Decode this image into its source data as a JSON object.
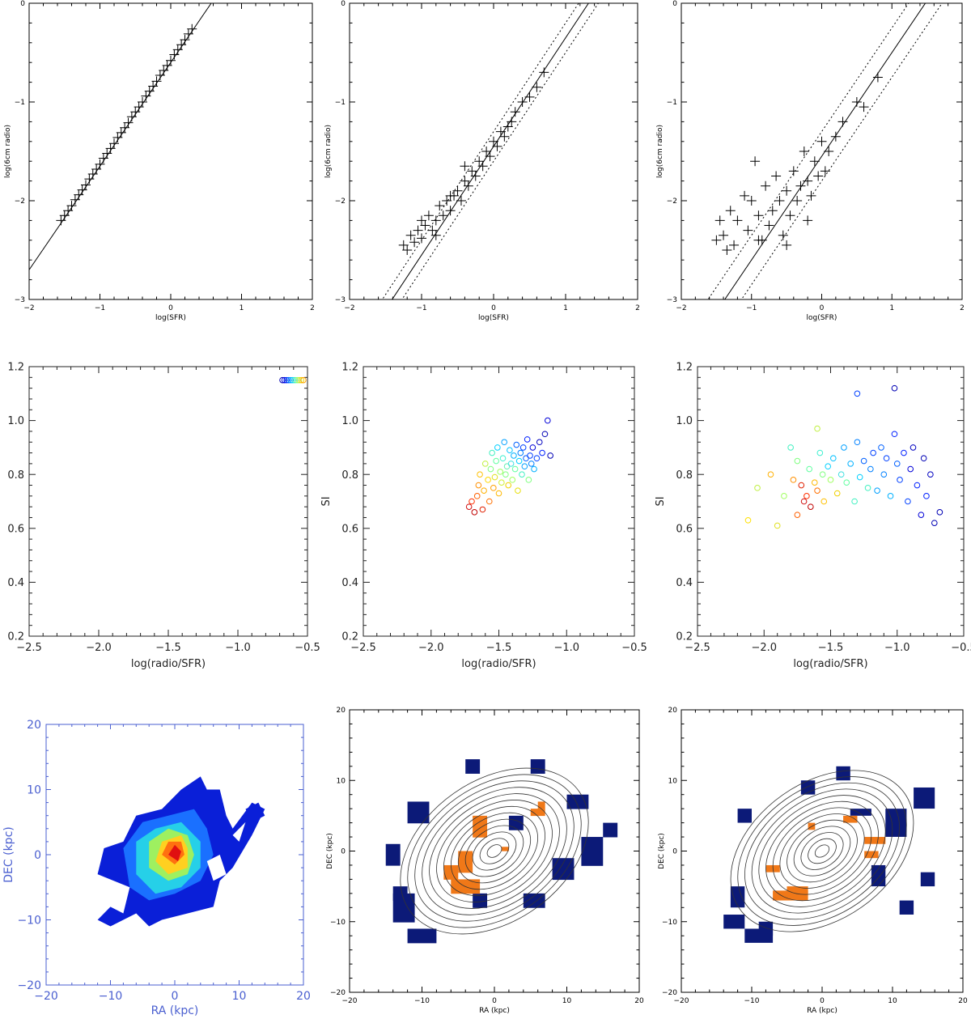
{
  "figure": {
    "row1": {
      "xlabel": "log(SFR)",
      "ylabel": "log(6cm radio)",
      "x_ticks": [
        "−2",
        "−1",
        "0",
        "1",
        "2"
      ],
      "y_ticks": [
        "−3",
        "−2",
        "−1",
        "0"
      ]
    },
    "row2": {
      "xlabel": "log(radio/SFR)",
      "ylabel": "SI",
      "x_ticks": [
        "−2.5",
        "−2.0",
        "−1.5",
        "−1.0",
        "−0.5"
      ],
      "y_ticks": [
        "0.2",
        "0.4",
        "0.6",
        "0.8",
        "1.0",
        "1.2"
      ]
    },
    "row3": {
      "xlabel": "RA (kpc)",
      "ylabel": "DEC (kpc)",
      "x_ticks": [
        "−20",
        "−10",
        "0",
        "10",
        "20"
      ],
      "y_ticks": [
        "−20",
        "−10",
        "0",
        "10",
        "20"
      ]
    },
    "colors": {
      "axis": "#000000",
      "axis_blue": "#4a5fd0",
      "map_navy": "#0c1a78",
      "map_orange": "#f07818",
      "contour": "#333333"
    }
  },
  "chart_data": [
    {
      "panel": "a1",
      "type": "scatter",
      "marker": "plus",
      "xlabel": "log(SFR)",
      "ylabel": "log(6cm radio)",
      "xlim": [
        -2,
        2
      ],
      "ylim": [
        -3,
        0
      ],
      "fit_line": {
        "slope": 1.05,
        "intercept": -0.6
      },
      "scatter_lines": [],
      "x": [
        -1.55,
        -1.5,
        -1.45,
        -1.4,
        -1.35,
        -1.3,
        -1.25,
        -1.2,
        -1.15,
        -1.1,
        -1.05,
        -1.0,
        -0.95,
        -0.9,
        -0.85,
        -0.8,
        -0.75,
        -0.7,
        -0.65,
        -0.6,
        -0.55,
        -0.5,
        -0.45,
        -0.4,
        -0.35,
        -0.3,
        -0.25,
        -0.2,
        -0.15,
        -0.1,
        -0.05,
        0.0,
        0.05,
        0.1,
        0.15,
        0.2,
        0.25,
        0.3
      ],
      "y": [
        -2.2,
        -2.15,
        -2.1,
        -2.05,
        -1.99,
        -1.94,
        -1.89,
        -1.84,
        -1.78,
        -1.73,
        -1.68,
        -1.63,
        -1.57,
        -1.52,
        -1.47,
        -1.42,
        -1.36,
        -1.31,
        -1.26,
        -1.21,
        -1.15,
        -1.1,
        -1.05,
        -1.0,
        -0.94,
        -0.89,
        -0.84,
        -0.79,
        -0.73,
        -0.68,
        -0.63,
        -0.58,
        -0.52,
        -0.47,
        -0.42,
        -0.37,
        -0.31,
        -0.26
      ]
    },
    {
      "panel": "a2",
      "type": "scatter",
      "marker": "plus",
      "xlabel": "log(SFR)",
      "ylabel": "log(6cm radio)",
      "xlim": [
        -2,
        2
      ],
      "ylim": [
        -3,
        0
      ],
      "fit_line": {
        "slope": 1.1,
        "intercept": -1.45
      },
      "scatter_lines": [
        0.15
      ],
      "x": [
        -1.25,
        -1.2,
        -1.15,
        -1.1,
        -1.05,
        -1.0,
        -0.95,
        -0.9,
        -0.85,
        -0.8,
        -0.75,
        -0.7,
        -0.65,
        -0.6,
        -0.55,
        -0.5,
        -0.45,
        -0.4,
        -0.35,
        -0.3,
        -0.25,
        -0.2,
        -0.15,
        -0.1,
        -0.05,
        0.0,
        0.05,
        0.1,
        0.15,
        0.2,
        0.25,
        0.3,
        0.4,
        0.5,
        0.6,
        0.7,
        -1.0,
        -0.8,
        -0.6,
        -0.4
      ],
      "y": [
        -2.45,
        -2.5,
        -2.35,
        -2.42,
        -2.3,
        -2.38,
        -2.25,
        -2.15,
        -2.3,
        -2.2,
        -2.05,
        -2.15,
        -2.0,
        -2.1,
        -1.95,
        -1.9,
        -2.0,
        -1.8,
        -1.85,
        -1.7,
        -1.75,
        -1.6,
        -1.65,
        -1.5,
        -1.55,
        -1.4,
        -1.45,
        -1.3,
        -1.35,
        -1.25,
        -1.2,
        -1.1,
        -1.0,
        -0.95,
        -0.85,
        -0.7,
        -2.2,
        -2.35,
        -1.95,
        -1.65
      ]
    },
    {
      "panel": "a3",
      "type": "scatter",
      "marker": "plus",
      "xlabel": "log(SFR)",
      "ylabel": "log(6cm radio)",
      "xlim": [
        -2,
        2
      ],
      "ylim": [
        -3,
        0
      ],
      "fit_line": {
        "slope": 1.05,
        "intercept": -1.55
      },
      "scatter_lines": [
        0.25
      ],
      "x": [
        -1.5,
        -1.45,
        -1.4,
        -1.3,
        -1.25,
        -1.2,
        -1.1,
        -1.05,
        -1.0,
        -0.95,
        -0.9,
        -0.85,
        -0.8,
        -0.75,
        -0.7,
        -0.65,
        -0.6,
        -0.55,
        -0.5,
        -0.45,
        -0.4,
        -0.35,
        -0.3,
        -0.25,
        -0.2,
        -0.15,
        -0.1,
        -0.05,
        0.0,
        0.05,
        0.1,
        0.2,
        0.3,
        0.5,
        0.6,
        0.8,
        -1.35,
        -0.9,
        -0.5,
        -0.2
      ],
      "y": [
        -2.4,
        -2.2,
        -2.35,
        -2.1,
        -2.45,
        -2.2,
        -1.95,
        -2.3,
        -2.0,
        -1.6,
        -2.15,
        -2.4,
        -1.85,
        -2.25,
        -2.1,
        -1.75,
        -2.0,
        -2.35,
        -1.9,
        -2.15,
        -1.7,
        -2.0,
        -1.85,
        -1.5,
        -1.8,
        -1.95,
        -1.6,
        -1.75,
        -1.4,
        -1.7,
        -1.5,
        -1.35,
        -1.2,
        -1.0,
        -1.05,
        -0.75,
        -2.5,
        -2.4,
        -2.45,
        -2.2
      ]
    },
    {
      "panel": "b1",
      "type": "scatter",
      "marker": "circle",
      "xlabel": "log(radio/SFR)",
      "ylabel": "SI",
      "xlim": [
        -2.5,
        -0.5
      ],
      "ylim": [
        0.2,
        1.2
      ],
      "x": [
        -0.68,
        -0.665,
        -0.65,
        -0.635,
        -0.62,
        -0.605,
        -0.59,
        -0.575,
        -0.56,
        -0.545,
        -0.53
      ],
      "y": [
        1.15,
        1.15,
        1.15,
        1.15,
        1.15,
        1.15,
        1.15,
        1.15,
        1.15,
        1.15,
        1.15
      ],
      "colors": [
        "#0000b4",
        "#0000d8",
        "#0020ff",
        "#0060ff",
        "#00a0ff",
        "#00d0ff",
        "#40f0c0",
        "#80ff80",
        "#c0f040",
        "#f0d000",
        "#ffa000"
      ]
    },
    {
      "panel": "b2",
      "type": "scatter",
      "marker": "circle",
      "xlabel": "log(radio/SFR)",
      "ylabel": "SI",
      "xlim": [
        -2.5,
        -0.5
      ],
      "ylim": [
        0.2,
        1.2
      ],
      "x": [
        -1.72,
        -1.7,
        -1.68,
        -1.66,
        -1.65,
        -1.64,
        -1.62,
        -1.61,
        -1.6,
        -1.58,
        -1.57,
        -1.56,
        -1.55,
        -1.54,
        -1.53,
        -1.52,
        -1.51,
        -1.5,
        -1.49,
        -1.48,
        -1.47,
        -1.46,
        -1.45,
        -1.44,
        -1.43,
        -1.42,
        -1.41,
        -1.4,
        -1.39,
        -1.38,
        -1.37,
        -1.36,
        -1.35,
        -1.34,
        -1.33,
        -1.32,
        -1.31,
        -1.3,
        -1.29,
        -1.28,
        -1.27,
        -1.26,
        -1.25,
        -1.24,
        -1.22,
        -1.2,
        -1.18,
        -1.16,
        -1.14,
        -1.12
      ],
      "y": [
        0.68,
        0.7,
        0.66,
        0.72,
        0.76,
        0.8,
        0.67,
        0.74,
        0.84,
        0.78,
        0.7,
        0.82,
        0.88,
        0.75,
        0.79,
        0.85,
        0.9,
        0.73,
        0.81,
        0.77,
        0.86,
        0.92,
        0.8,
        0.83,
        0.76,
        0.89,
        0.84,
        0.78,
        0.87,
        0.82,
        0.91,
        0.74,
        0.85,
        0.88,
        0.8,
        0.9,
        0.83,
        0.86,
        0.93,
        0.78,
        0.87,
        0.84,
        0.9,
        0.82,
        0.86,
        0.92,
        0.88,
        0.95,
        1.0,
        0.87
      ],
      "colors": [
        "#d01010",
        "#ff3000",
        "#c00000",
        "#ff6000",
        "#ff9000",
        "#ffc000",
        "#e02000",
        "#ffb000",
        "#c0f040",
        "#ffd800",
        "#ff7000",
        "#80ff80",
        "#40f0c0",
        "#ffa000",
        "#e0e020",
        "#60ffa0",
        "#00d0ff",
        "#ffb800",
        "#a0ff60",
        "#d0f030",
        "#40f0d0",
        "#00a0ff",
        "#80ff80",
        "#60f0b0",
        "#f0d000",
        "#00c0ff",
        "#40e0e0",
        "#a0ff60",
        "#00b0ff",
        "#60ffa0",
        "#0060ff",
        "#e8e010",
        "#00d0ff",
        "#0080ff",
        "#40f0c0",
        "#0040ff",
        "#00a0ff",
        "#0060ff",
        "#0020ff",
        "#80ff80",
        "#0040ff",
        "#0080ff",
        "#0000d8",
        "#00b0ff",
        "#0040ff",
        "#0000c0",
        "#0020ff",
        "#0000b4",
        "#0000d8",
        "#0000b4"
      ]
    },
    {
      "panel": "b3",
      "type": "scatter",
      "marker": "circle",
      "xlabel": "log(radio/SFR)",
      "ylabel": "SI",
      "xlim": [
        -2.5,
        -0.5
      ],
      "ylim": [
        0.2,
        1.2
      ],
      "x": [
        -2.12,
        -2.05,
        -1.95,
        -1.9,
        -1.85,
        -1.8,
        -1.78,
        -1.75,
        -1.72,
        -1.7,
        -1.68,
        -1.66,
        -1.65,
        -1.62,
        -1.6,
        -1.58,
        -1.56,
        -1.55,
        -1.52,
        -1.5,
        -1.48,
        -1.45,
        -1.42,
        -1.4,
        -1.38,
        -1.35,
        -1.32,
        -1.3,
        -1.28,
        -1.25,
        -1.22,
        -1.2,
        -1.18,
        -1.15,
        -1.12,
        -1.1,
        -1.08,
        -1.05,
        -1.02,
        -1.0,
        -0.98,
        -0.95,
        -0.92,
        -0.9,
        -0.88,
        -0.85,
        -0.82,
        -0.8,
        -0.78,
        -0.75,
        -0.72,
        -0.68,
        -1.3,
        -1.02,
        -1.75,
        -1.6
      ],
      "y": [
        0.63,
        0.75,
        0.8,
        0.61,
        0.72,
        0.9,
        0.78,
        0.85,
        0.76,
        0.7,
        0.72,
        0.82,
        0.68,
        0.77,
        0.74,
        0.88,
        0.8,
        0.7,
        0.83,
        0.78,
        0.86,
        0.73,
        0.8,
        0.9,
        0.77,
        0.84,
        0.7,
        0.92,
        0.79,
        0.85,
        0.75,
        0.82,
        0.88,
        0.74,
        0.9,
        0.8,
        0.86,
        0.72,
        0.95,
        0.84,
        0.78,
        0.88,
        0.7,
        0.82,
        0.9,
        0.76,
        0.65,
        0.86,
        0.72,
        0.8,
        0.62,
        0.66,
        1.1,
        1.12,
        0.65,
        0.97
      ],
      "colors": [
        "#ffe000",
        "#c0f040",
        "#ffb000",
        "#e0e020",
        "#a0ff60",
        "#40f0c0",
        "#ff9000",
        "#80ff80",
        "#e02000",
        "#d01010",
        "#ff3000",
        "#60ffa0",
        "#c00000",
        "#ffb800",
        "#ff7000",
        "#40f0d0",
        "#80ff80",
        "#ffc000",
        "#00d0ff",
        "#a0ff60",
        "#00c0ff",
        "#f0d000",
        "#40e0e0",
        "#00a0ff",
        "#60ffa0",
        "#00b0ff",
        "#40f0c0",
        "#0080ff",
        "#00d0ff",
        "#0060ff",
        "#40f0c0",
        "#0080ff",
        "#0040ff",
        "#00a0ff",
        "#0060ff",
        "#0080ff",
        "#0040ff",
        "#00b0ff",
        "#0020ff",
        "#0060ff",
        "#0040ff",
        "#0020ff",
        "#0040ff",
        "#0000d8",
        "#0000c0",
        "#0020ff",
        "#0000d8",
        "#0000b4",
        "#0020ff",
        "#0000c0",
        "#0000b4",
        "#0000b4",
        "#0040ff",
        "#0000b4",
        "#ff6000",
        "#c0f040"
      ]
    },
    {
      "panel": "c1",
      "type": "heatmap",
      "xlabel": "RA (kpc)",
      "ylabel": "DEC (kpc)",
      "xlim": [
        -20,
        20
      ],
      "ylim": [
        -20,
        20
      ]
    },
    {
      "panel": "c2",
      "type": "heatmap",
      "xlabel": "RA (kpc)",
      "ylabel": "DEC (kpc)",
      "xlim": [
        -20,
        20
      ],
      "ylim": [
        -20,
        20
      ]
    },
    {
      "panel": "c3",
      "type": "heatmap",
      "xlabel": "RA (kpc)",
      "ylabel": "DEC (kpc)",
      "xlim": [
        -20,
        20
      ],
      "ylim": [
        -20,
        20
      ]
    }
  ]
}
